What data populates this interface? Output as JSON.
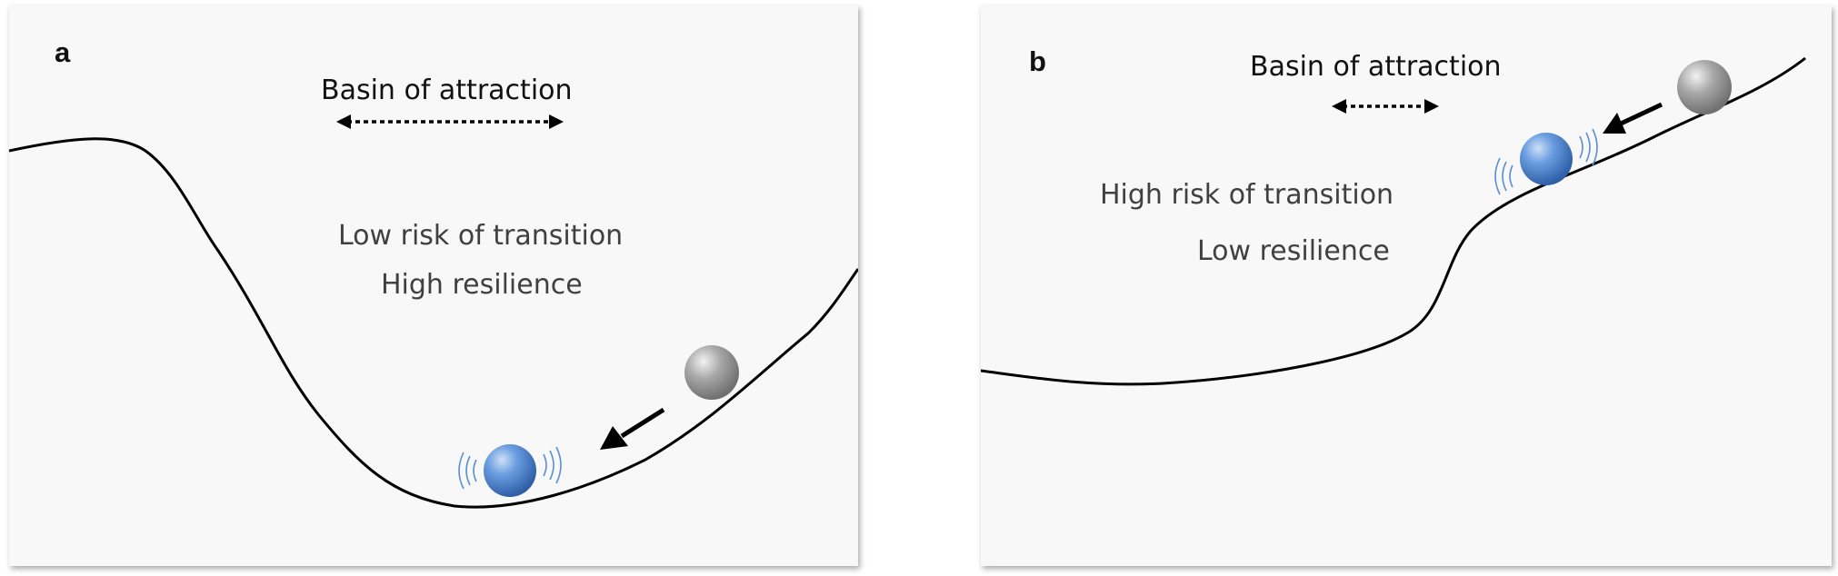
{
  "panels": [
    {
      "label": "a",
      "basin_label": "Basin of attraction",
      "risk_text": "Low risk of transition",
      "resilience_text": "High resilience"
    },
    {
      "label": "b",
      "basin_label": "Basin of attraction",
      "risk_text": "High risk of transition",
      "resilience_text": "Low resilience"
    }
  ],
  "colors": {
    "panel_bg": "#f8f8f8",
    "curve": "#000000",
    "ball_blue": "#4a7fc9",
    "ball_gray": "#9a9a9a",
    "vibration_lines": "#5a8fd0",
    "text_dark": "#111111",
    "text_gray": "#404040"
  },
  "icons": {
    "ball_before": "gray-sphere-icon",
    "ball_after": "blue-sphere-icon",
    "motion_arrow": "arrow-icon",
    "basin_width": "double-arrow-icon"
  }
}
